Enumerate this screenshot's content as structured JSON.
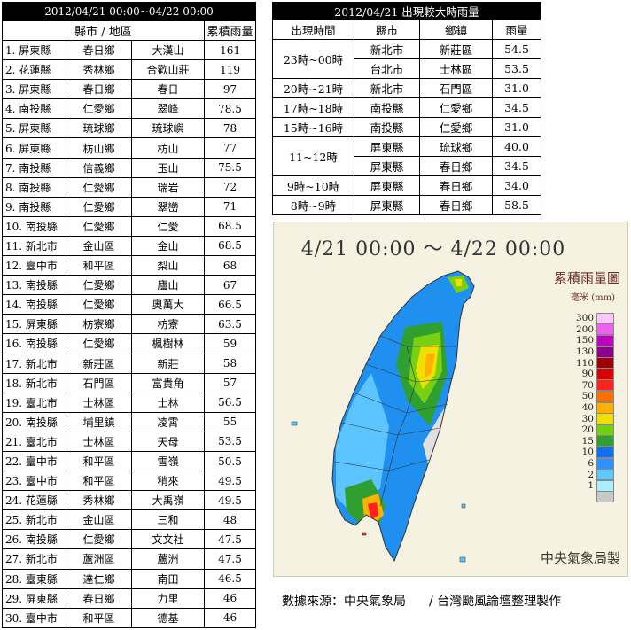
{
  "rank_table": {
    "title": "2012/04/21 00:00~04/22 00:00",
    "headers": {
      "area": "縣市 / 地區",
      "amount": "累積雨量"
    },
    "rows": [
      {
        "county": "1. 屏東縣",
        "town": "春日鄉",
        "station": "大漢山",
        "value": "161"
      },
      {
        "county": "2. 花蓮縣",
        "town": "秀林鄉",
        "station": "合歡山莊",
        "value": "119"
      },
      {
        "county": "3. 屏東縣",
        "town": "春日鄉",
        "station": "春日",
        "value": "97"
      },
      {
        "county": "4. 南投縣",
        "town": "仁愛鄉",
        "station": "翠峰",
        "value": "78.5"
      },
      {
        "county": "5. 屏東縣",
        "town": "琉球鄉",
        "station": "琉球嶼",
        "value": "78"
      },
      {
        "county": "6. 屏東縣",
        "town": "枋山鄉",
        "station": "枋山",
        "value": "77"
      },
      {
        "county": "7. 南投縣",
        "town": "信義鄉",
        "station": "玉山",
        "value": "75.5"
      },
      {
        "county": "8. 南投縣",
        "town": "仁愛鄉",
        "station": "瑞岩",
        "value": "72"
      },
      {
        "county": "9. 南投縣",
        "town": "仁愛鄉",
        "station": "翠巒",
        "value": "71"
      },
      {
        "county": "10. 南投縣",
        "town": "仁愛鄉",
        "station": "仁愛",
        "value": "68.5"
      },
      {
        "county": "11. 新北市",
        "town": "金山區",
        "station": "金山",
        "value": "68.5"
      },
      {
        "county": "12. 臺中市",
        "town": "和平區",
        "station": "梨山",
        "value": "68"
      },
      {
        "county": "13. 南投縣",
        "town": "仁愛鄉",
        "station": "廬山",
        "value": "67"
      },
      {
        "county": "14. 南投縣",
        "town": "仁愛鄉",
        "station": "奧萬大",
        "value": "66.5"
      },
      {
        "county": "15. 屏東縣",
        "town": "枋寮鄉",
        "station": "枋寮",
        "value": "63.5"
      },
      {
        "county": "16. 南投縣",
        "town": "仁愛鄉",
        "station": "楓樹林",
        "value": "59"
      },
      {
        "county": "17. 新北市",
        "town": "新莊區",
        "station": "新莊",
        "value": "58"
      },
      {
        "county": "18. 新北市",
        "town": "石門區",
        "station": "富貴角",
        "value": "57"
      },
      {
        "county": "19. 臺北市",
        "town": "士林區",
        "station": "士林",
        "value": "56.5"
      },
      {
        "county": "20. 南投縣",
        "town": "埔里鎮",
        "station": "凌霄",
        "value": "55"
      },
      {
        "county": "21. 臺北市",
        "town": "士林區",
        "station": "天母",
        "value": "53.5"
      },
      {
        "county": "22. 臺中市",
        "town": "和平區",
        "station": "雪嶺",
        "value": "50.5"
      },
      {
        "county": "23. 臺中市",
        "town": "和平區",
        "station": "稍來",
        "value": "49.5"
      },
      {
        "county": "24. 花蓮縣",
        "town": "秀林鄉",
        "station": "大禹嶺",
        "value": "49.5"
      },
      {
        "county": "25. 新北市",
        "town": "金山區",
        "station": "三和",
        "value": "48"
      },
      {
        "county": "26. 南投縣",
        "town": "仁愛鄉",
        "station": "文文社",
        "value": "47.5"
      },
      {
        "county": "27. 新北市",
        "town": "蘆洲區",
        "station": "蘆洲",
        "value": "47.5"
      },
      {
        "county": "28. 臺東縣",
        "town": "達仁鄉",
        "station": "南田",
        "value": "46.5"
      },
      {
        "county": "29. 屏東縣",
        "town": "春日鄉",
        "station": "力里",
        "value": "46"
      },
      {
        "county": "30. 臺中市",
        "town": "和平區",
        "station": "德基",
        "value": "46"
      }
    ]
  },
  "hour_table": {
    "title": "2012/04/21 出現較大時雨量",
    "headers": {
      "time": "出現時間",
      "county": "縣市",
      "town": "鄉鎮",
      "amount": "雨量"
    },
    "groups": [
      {
        "time": "23時~00時",
        "rows": [
          {
            "county": "新北市",
            "town": "新莊區",
            "value": "54.5"
          },
          {
            "county": "台北市",
            "town": "士林區",
            "value": "53.5"
          }
        ]
      },
      {
        "time": "20時~21時",
        "rows": [
          {
            "county": "新北市",
            "town": "石門區",
            "value": "31.0"
          }
        ]
      },
      {
        "time": "17時~18時",
        "rows": [
          {
            "county": "南投縣",
            "town": "仁愛鄉",
            "value": "34.5"
          }
        ]
      },
      {
        "time": "15時~16時",
        "rows": [
          {
            "county": "南投縣",
            "town": "仁愛鄉",
            "value": "31.0"
          }
        ]
      },
      {
        "time": "11~12時",
        "rows": [
          {
            "county": "屏東縣",
            "town": "琉球鄉",
            "value": "40.0"
          },
          {
            "county": "屏東縣",
            "town": "春日鄉",
            "value": "34.5"
          }
        ]
      },
      {
        "time": "9時~10時",
        "rows": [
          {
            "county": "屏東縣",
            "town": "春日鄉",
            "value": "34.0"
          }
        ]
      },
      {
        "time": "8時~9時",
        "rows": [
          {
            "county": "屏東縣",
            "town": "春日鄉",
            "value": "58.5"
          }
        ]
      }
    ]
  },
  "map": {
    "title": "4/21 00:00 ～ 4/22 00:00",
    "legend_title": "累積雨量圖",
    "legend_unit": "毫米 (mm)",
    "credit": "中央氣象局製",
    "legend": [
      {
        "label": "300",
        "color": "#fbc8fb"
      },
      {
        "label": "200",
        "color": "#f060f0"
      },
      {
        "label": "150",
        "color": "#c000c0"
      },
      {
        "label": "130",
        "color": "#900090"
      },
      {
        "label": "110",
        "color": "#a00000"
      },
      {
        "label": "90",
        "color": "#d80000"
      },
      {
        "label": "70",
        "color": "#ff2020"
      },
      {
        "label": "50",
        "color": "#ff7000"
      },
      {
        "label": "40",
        "color": "#ffb000"
      },
      {
        "label": "30",
        "color": "#f0e000"
      },
      {
        "label": "20",
        "color": "#70d010"
      },
      {
        "label": "15",
        "color": "#30a030"
      },
      {
        "label": "10",
        "color": "#1070f0"
      },
      {
        "label": "6",
        "color": "#3090ff"
      },
      {
        "label": "2",
        "color": "#60c8ff"
      },
      {
        "label": "1",
        "color": "#a8f0ff"
      },
      {
        "label": "",
        "color": "#c8c8c8"
      }
    ]
  },
  "source": {
    "left": "數據來源：中央氣象局",
    "right": "/ 台灣颱風論壇整理製作"
  }
}
